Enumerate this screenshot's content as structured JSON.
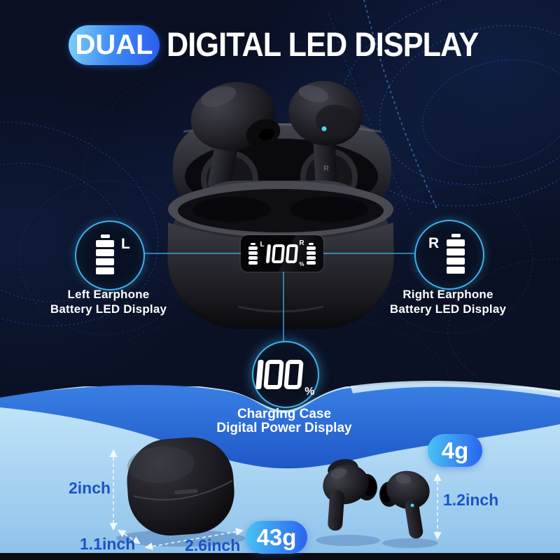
{
  "title": {
    "badge": "DUAL",
    "text": "DIGITAL LED DISPLAY"
  },
  "left_callout": {
    "letter": "L",
    "line1": "Left Earphone",
    "line2": "Battery LED Display"
  },
  "right_callout": {
    "letter": "R",
    "line1": "Right Earphone",
    "line2": "Battery LED Display"
  },
  "case_display": {
    "left_letter": "L",
    "value": "100",
    "percent": "%",
    "right_letter": "R"
  },
  "power_callout": {
    "value": "100",
    "percent": "%",
    "line1": "Charging Case",
    "line2": "Digital Power Display"
  },
  "product": {
    "right_earbud_marking": "R"
  },
  "measurements": {
    "case_height": "2inch",
    "case_depth": "1.1inch",
    "case_width": "2.6inch",
    "case_weight": "43g",
    "earbud_weight": "4g",
    "earbud_height": "1.2inch"
  },
  "colors": {
    "accent_cyan": "#3fb0ea",
    "badge_gradient_start": "#4ac4f2",
    "badge_gradient_end": "#2a62f0",
    "measurement_text": "#1a53c8",
    "wave_blue": "#2b68d4",
    "light_blue": "#aed8f4",
    "background_navy": "#0b1124"
  }
}
